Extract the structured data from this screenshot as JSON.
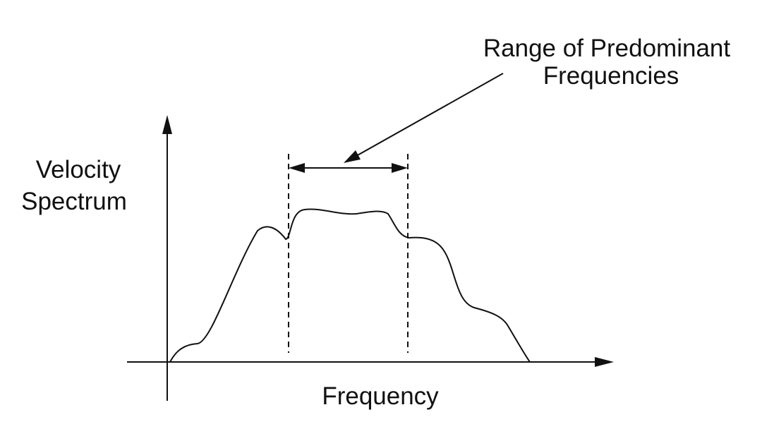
{
  "labels": {
    "y_axis_line1": "Velocity",
    "y_axis_line2": "Spectrum",
    "x_axis": "Frequency",
    "annotation_line1": "Range of Predominant",
    "annotation_line2": "Frequencies"
  },
  "style": {
    "ink_color": "#111111",
    "background": "#ffffff"
  }
}
